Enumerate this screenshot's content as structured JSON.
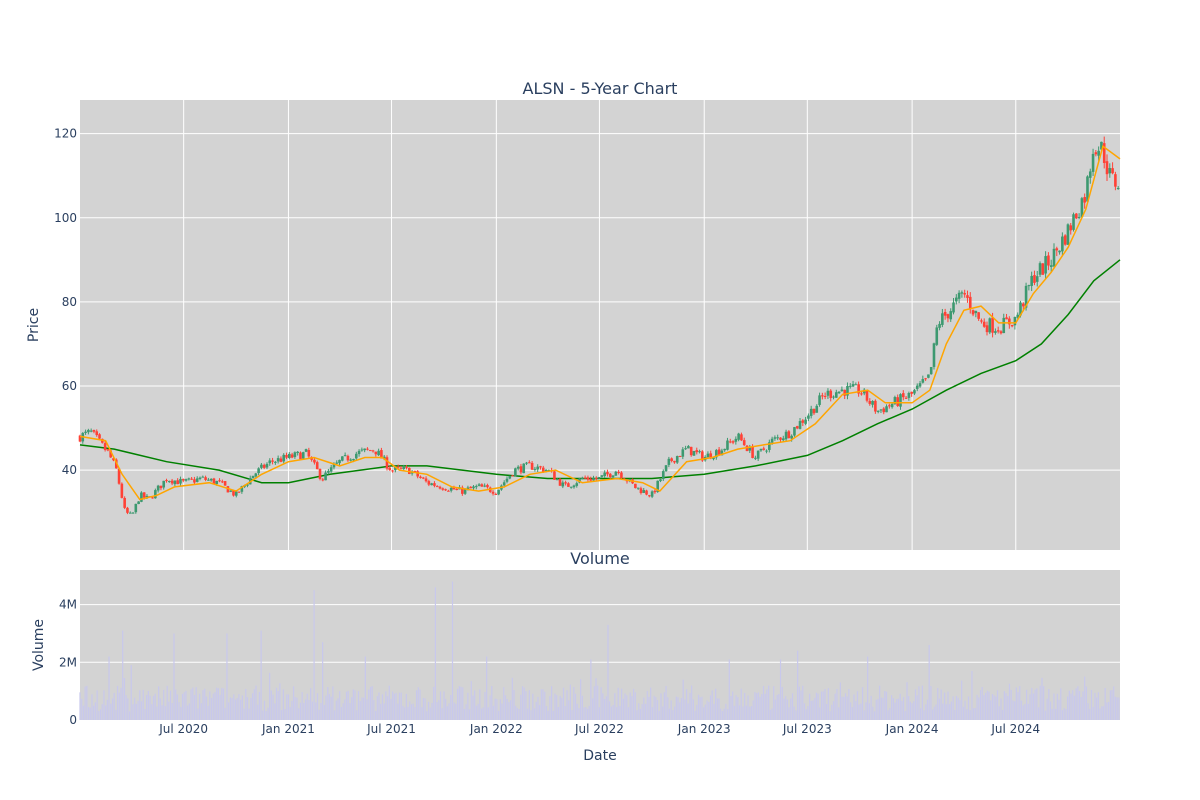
{
  "chart_data": [
    {
      "type": "candlestick",
      "title": "ALSN - 5-Year Chart",
      "ylabel": "Price",
      "ylim": [
        21,
        128
      ],
      "y_ticks": [
        40,
        60,
        80,
        100,
        120
      ],
      "x_range": [
        "2020-01-01",
        "2024-12-31"
      ],
      "grid": true,
      "legend": "none",
      "colors": {
        "increasing": "#3d9970",
        "decreasing": "#ff4136",
        "ma_short": "#ffa500",
        "ma_long": "#008000",
        "plot_bg": "#d3d3d3",
        "grid": "#ffffff"
      },
      "price_anchors": [
        [
          "2020-01-01",
          48
        ],
        [
          "2020-01-20",
          49
        ],
        [
          "2020-02-20",
          44
        ],
        [
          "2020-03-05",
          40
        ],
        [
          "2020-03-20",
          30
        ],
        [
          "2020-04-01",
          29
        ],
        [
          "2020-04-15",
          34
        ],
        [
          "2020-05-01",
          33
        ],
        [
          "2020-06-01",
          38
        ],
        [
          "2020-07-01",
          37
        ],
        [
          "2020-08-01",
          38
        ],
        [
          "2020-09-01",
          37
        ],
        [
          "2020-10-01",
          34
        ],
        [
          "2020-11-01",
          39
        ],
        [
          "2020-12-01",
          42
        ],
        [
          "2021-01-01",
          43
        ],
        [
          "2021-02-01",
          44
        ],
        [
          "2021-03-01",
          38
        ],
        [
          "2021-04-01",
          42
        ],
        [
          "2021-05-01",
          44
        ],
        [
          "2021-06-01",
          45
        ],
        [
          "2021-07-01",
          40
        ],
        [
          "2021-08-01",
          40
        ],
        [
          "2021-09-01",
          37
        ],
        [
          "2021-10-01",
          36
        ],
        [
          "2021-11-01",
          35
        ],
        [
          "2021-12-01",
          36
        ],
        [
          "2022-01-01",
          35
        ],
        [
          "2022-02-01",
          40
        ],
        [
          "2022-03-01",
          41
        ],
        [
          "2022-04-01",
          40
        ],
        [
          "2022-05-01",
          36
        ],
        [
          "2022-06-01",
          38
        ],
        [
          "2022-07-01",
          38
        ],
        [
          "2022-08-01",
          40
        ],
        [
          "2022-09-01",
          36
        ],
        [
          "2022-10-01",
          34
        ],
        [
          "2022-11-01",
          42
        ],
        [
          "2022-12-01",
          45
        ],
        [
          "2023-01-01",
          43
        ],
        [
          "2023-02-01",
          45
        ],
        [
          "2023-03-01",
          48
        ],
        [
          "2023-04-01",
          43
        ],
        [
          "2023-05-01",
          47
        ],
        [
          "2023-06-01",
          49
        ],
        [
          "2023-07-01",
          53
        ],
        [
          "2023-08-01",
          58
        ],
        [
          "2023-09-01",
          59
        ],
        [
          "2023-10-01",
          59
        ],
        [
          "2023-11-01",
          54
        ],
        [
          "2023-12-01",
          56
        ],
        [
          "2024-01-01",
          58
        ],
        [
          "2024-02-01",
          62
        ],
        [
          "2024-02-15",
          75
        ],
        [
          "2024-03-01",
          77
        ],
        [
          "2024-04-01",
          82
        ],
        [
          "2024-05-01",
          75
        ],
        [
          "2024-06-01",
          74
        ],
        [
          "2024-07-01",
          76
        ],
        [
          "2024-08-01",
          86
        ],
        [
          "2024-09-01",
          90
        ],
        [
          "2024-10-01",
          97
        ],
        [
          "2024-11-01",
          106
        ],
        [
          "2024-11-15",
          118
        ],
        [
          "2024-12-01",
          116
        ],
        [
          "2024-12-15",
          109
        ],
        [
          "2024-12-31",
          108
        ]
      ],
      "ma_short": [
        [
          "2020-01-01",
          48
        ],
        [
          "2020-02-15",
          47
        ],
        [
          "2020-03-15",
          39
        ],
        [
          "2020-04-15",
          33
        ],
        [
          "2020-05-15",
          34
        ],
        [
          "2020-06-15",
          36
        ],
        [
          "2020-08-15",
          37
        ],
        [
          "2020-10-01",
          35
        ],
        [
          "2020-11-15",
          39
        ],
        [
          "2021-01-01",
          42
        ],
        [
          "2021-02-15",
          43
        ],
        [
          "2021-04-01",
          41
        ],
        [
          "2021-05-15",
          43
        ],
        [
          "2021-06-15",
          43
        ],
        [
          "2021-07-15",
          40
        ],
        [
          "2021-09-01",
          39
        ],
        [
          "2021-10-15",
          36
        ],
        [
          "2021-12-01",
          35
        ],
        [
          "2022-01-15",
          36
        ],
        [
          "2022-03-01",
          39
        ],
        [
          "2022-04-15",
          40
        ],
        [
          "2022-06-01",
          37
        ],
        [
          "2022-08-01",
          38
        ],
        [
          "2022-09-15",
          37
        ],
        [
          "2022-10-15",
          35
        ],
        [
          "2022-12-01",
          42
        ],
        [
          "2023-01-15",
          43
        ],
        [
          "2023-03-01",
          45
        ],
        [
          "2023-04-15",
          46
        ],
        [
          "2023-06-01",
          47
        ],
        [
          "2023-07-15",
          51
        ],
        [
          "2023-09-01",
          58
        ],
        [
          "2023-10-15",
          59
        ],
        [
          "2023-11-15",
          56
        ],
        [
          "2024-01-01",
          56
        ],
        [
          "2024-02-01",
          59
        ],
        [
          "2024-03-01",
          70
        ],
        [
          "2024-04-01",
          78
        ],
        [
          "2024-05-01",
          79
        ],
        [
          "2024-06-01",
          75
        ],
        [
          "2024-07-01",
          75
        ],
        [
          "2024-08-01",
          82
        ],
        [
          "2024-09-01",
          87
        ],
        [
          "2024-10-01",
          93
        ],
        [
          "2024-11-01",
          102
        ],
        [
          "2024-12-01",
          117
        ],
        [
          "2024-12-31",
          114
        ]
      ],
      "ma_long": [
        [
          "2020-01-01",
          46
        ],
        [
          "2020-03-01",
          45
        ],
        [
          "2020-06-01",
          42
        ],
        [
          "2020-09-01",
          40
        ],
        [
          "2020-11-15",
          37
        ],
        [
          "2021-01-01",
          37
        ],
        [
          "2021-03-15",
          39
        ],
        [
          "2021-07-01",
          41
        ],
        [
          "2021-09-01",
          41
        ],
        [
          "2022-01-01",
          39
        ],
        [
          "2022-04-01",
          38
        ],
        [
          "2022-07-01",
          38
        ],
        [
          "2022-10-01",
          38
        ],
        [
          "2023-01-01",
          39
        ],
        [
          "2023-04-01",
          41
        ],
        [
          "2023-07-01",
          43.5
        ],
        [
          "2023-09-01",
          47
        ],
        [
          "2023-11-01",
          51
        ],
        [
          "2024-01-01",
          54.5
        ],
        [
          "2024-03-01",
          59
        ],
        [
          "2024-05-01",
          63
        ],
        [
          "2024-07-01",
          66
        ],
        [
          "2024-08-15",
          70
        ],
        [
          "2024-10-01",
          77
        ],
        [
          "2024-11-15",
          85
        ],
        [
          "2024-12-31",
          90
        ]
      ]
    },
    {
      "type": "bar",
      "title": "Volume",
      "xlabel": "Date",
      "ylabel": "Volume",
      "ylim": [
        0,
        5200000
      ],
      "y_ticks": [
        0,
        2000000,
        4000000
      ],
      "y_tick_labels": [
        "0",
        "2M",
        "4M"
      ],
      "x_ticks": [
        "2020-07-01",
        "2021-01-01",
        "2021-07-01",
        "2022-01-01",
        "2022-07-01",
        "2023-01-01",
        "2023-07-01",
        "2024-01-01",
        "2024-07-01"
      ],
      "x_tick_labels": [
        "Jul 2020",
        "Jan 2021",
        "Jul 2021",
        "Jan 2022",
        "Jul 2022",
        "Jan 2023",
        "Jul 2023",
        "Jan 2024",
        "Jul 2024"
      ],
      "grid": true,
      "colors": {
        "bar": "#c8c8ec",
        "plot_bg": "#d3d3d3",
        "grid": "#ffffff"
      },
      "volume_spikes": [
        [
          "2020-02-20",
          2200000
        ],
        [
          "2020-03-15",
          3100000
        ],
        [
          "2020-04-01",
          1900000
        ],
        [
          "2020-06-15",
          3000000
        ],
        [
          "2020-09-15",
          3000000
        ],
        [
          "2020-11-15",
          3100000
        ],
        [
          "2021-02-15",
          4500000
        ],
        [
          "2021-03-01",
          2700000
        ],
        [
          "2021-05-15",
          2200000
        ],
        [
          "2021-09-15",
          4600000
        ],
        [
          "2021-10-15",
          4800000
        ],
        [
          "2021-12-15",
          2200000
        ],
        [
          "2022-06-15",
          2100000
        ],
        [
          "2022-07-15",
          3300000
        ],
        [
          "2023-02-15",
          2100000
        ],
        [
          "2023-05-15",
          2100000
        ],
        [
          "2023-06-15",
          2400000
        ],
        [
          "2023-10-15",
          2200000
        ],
        [
          "2024-02-01",
          2600000
        ],
        [
          "2024-04-15",
          1700000
        ]
      ]
    }
  ]
}
